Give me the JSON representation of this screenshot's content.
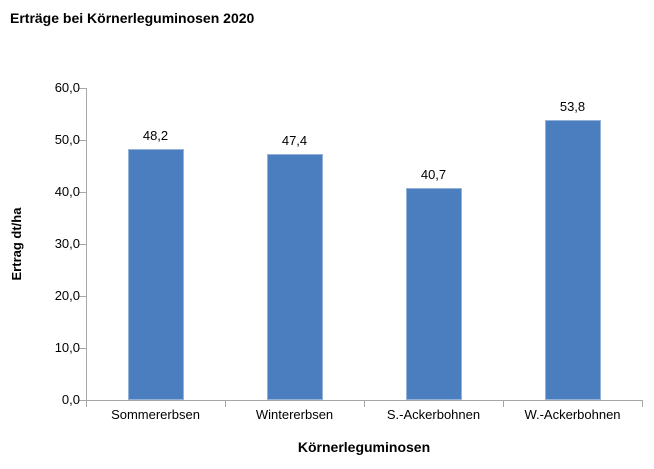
{
  "title": "Erträge bei Körnerleguminosen 2020",
  "colors": {
    "bar_fill": "#4A7EBE",
    "bar_border": "#95B3D7",
    "axis_line": "#A6A6A6",
    "text": "#000000",
    "background": "#FFFFFF"
  },
  "chart_data": {
    "type": "bar",
    "title": "Erträge bei Körnerleguminosen 2020",
    "categories": [
      "Sommererbsen",
      "Wintererbsen",
      "S.-Ackerbohnen",
      "W.-Ackerbohnen"
    ],
    "values": [
      48.2,
      47.4,
      40.7,
      53.8
    ],
    "value_labels": [
      "48,2",
      "47,4",
      "40,7",
      "53,8"
    ],
    "xlabel": "Körnerleguminosen",
    "ylabel": "Ertrag dt/ha",
    "ylim": [
      0,
      60
    ],
    "ytick_step": 10,
    "ytick_labels": [
      "0,0",
      "10,0",
      "20,0",
      "30,0",
      "40,0",
      "50,0",
      "60,0"
    ],
    "grid": false,
    "legend": false,
    "decimal_separator": ","
  }
}
